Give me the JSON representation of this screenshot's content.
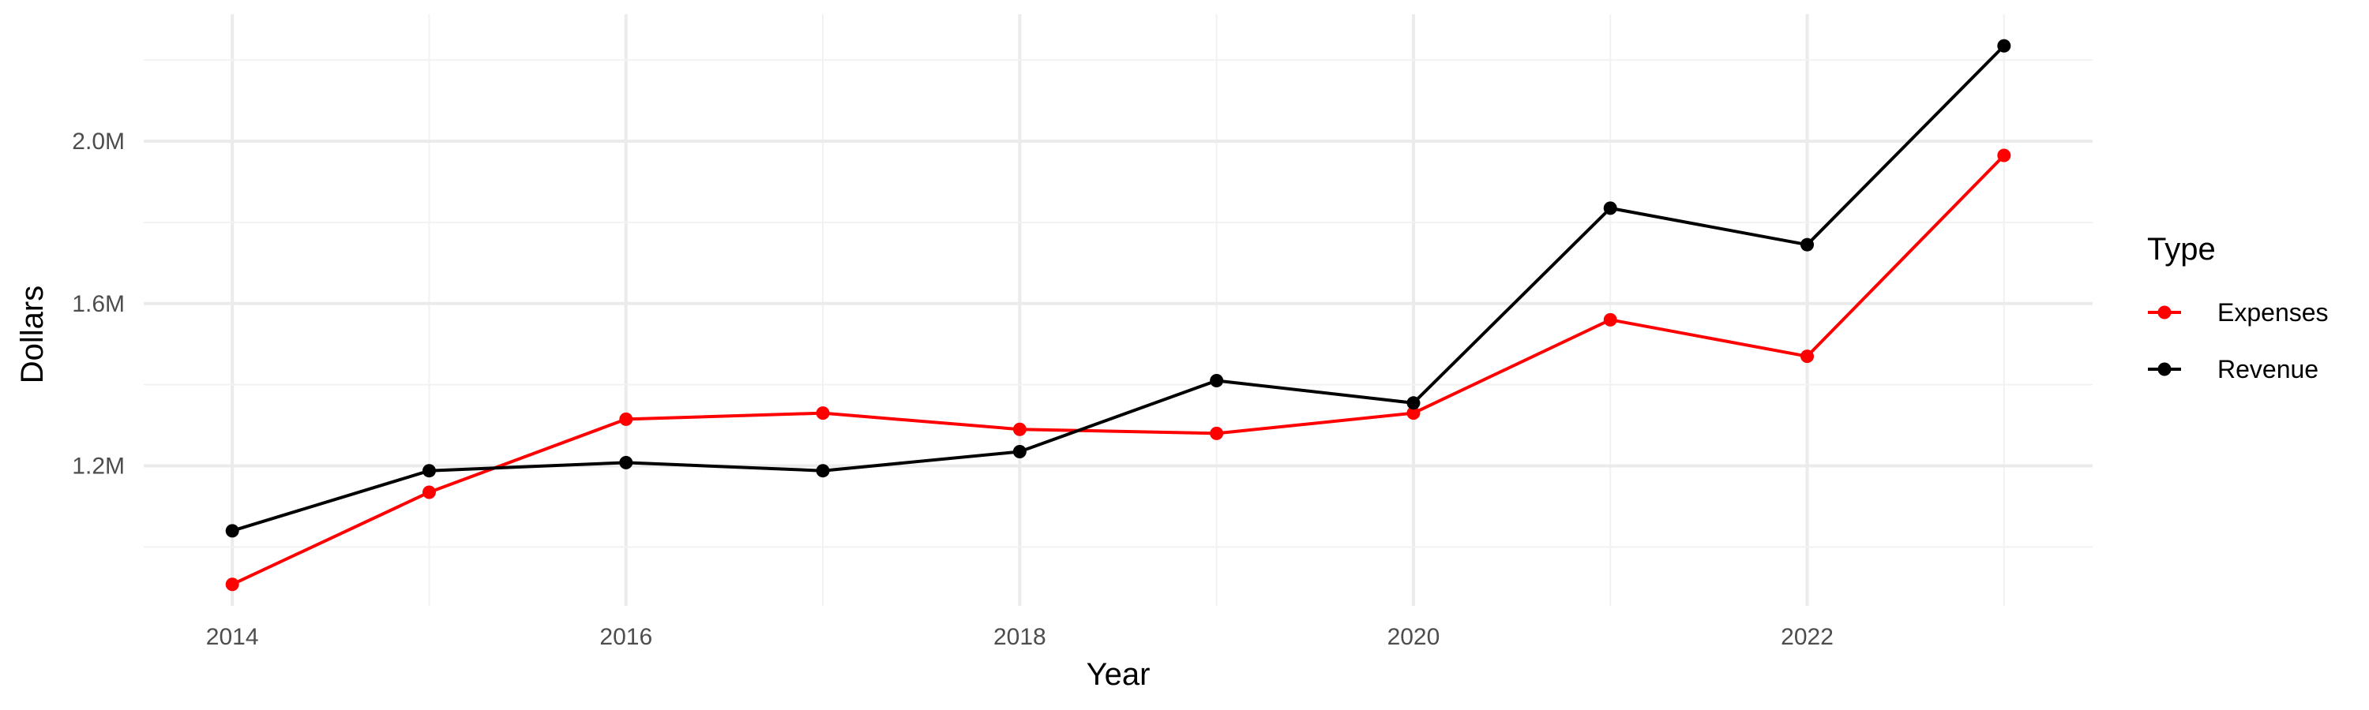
{
  "chart_data": {
    "type": "line",
    "xlabel": "Year",
    "ylabel": "Dollars",
    "x": [
      2014,
      2015,
      2016,
      2017,
      2018,
      2019,
      2020,
      2021,
      2022,
      2023
    ],
    "x_ticks": [
      2014,
      2016,
      2018,
      2020,
      2022
    ],
    "x_tick_labels": [
      "2014",
      "2016",
      "2018",
      "2020",
      "2022"
    ],
    "xlim": [
      2013.55,
      2023.45
    ],
    "y_ticks": [
      1200000,
      1600000,
      2000000
    ],
    "y_tick_labels": [
      "1.2M",
      "1.6M",
      "2.0M"
    ],
    "y_minor_ticks": [
      1000000,
      1400000,
      1800000,
      2200000
    ],
    "ylim": [
      855000,
      2313000
    ],
    "grid": true,
    "legend": {
      "title": "Type",
      "position": "right"
    },
    "series": [
      {
        "name": "Expenses",
        "color": "#ff0000",
        "values": [
          908000,
          1135000,
          1315000,
          1330000,
          1290000,
          1280000,
          1330000,
          1560000,
          1470000,
          1965000
        ]
      },
      {
        "name": "Revenue",
        "color": "#000000",
        "values": [
          1040000,
          1188000,
          1208000,
          1188000,
          1235000,
          1410000,
          1355000,
          1835000,
          1745000,
          2235000
        ]
      }
    ]
  }
}
